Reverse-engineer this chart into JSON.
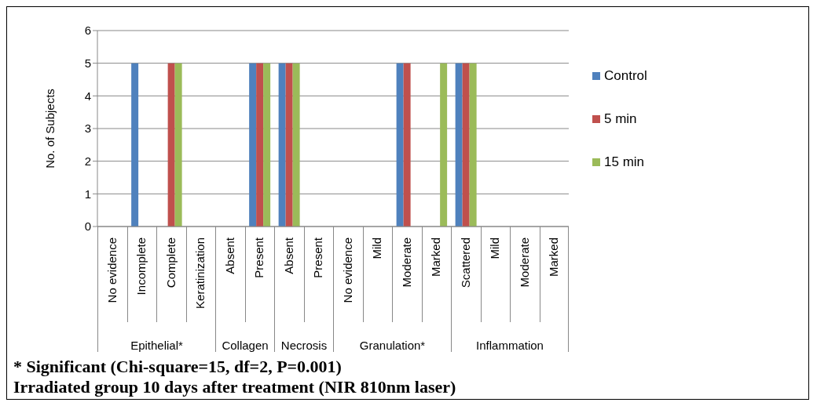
{
  "chart_data": {
    "type": "bar",
    "ylabel": "No. of Subjects",
    "categories": [
      "No evidence",
      "Incomplete",
      "Complete",
      "Keratinization",
      "Absent",
      "Present",
      "Absent",
      "Present",
      "No evidence",
      "Mild",
      "Moderate",
      "Marked",
      "Scattered",
      "Mild",
      "Moderate",
      "Marked"
    ],
    "series": [
      {
        "name": "Control",
        "color": "#4f81bd",
        "values": [
          0,
          5,
          0,
          0,
          0,
          5,
          5,
          0,
          0,
          0,
          5,
          0,
          5,
          0,
          0,
          0
        ]
      },
      {
        "name": "5 min",
        "color": "#c0504d",
        "values": [
          0,
          0,
          5,
          0,
          0,
          5,
          5,
          0,
          0,
          0,
          5,
          0,
          5,
          0,
          0,
          0
        ]
      },
      {
        "name": "15 min",
        "color": "#9bbb59",
        "values": [
          0,
          0,
          5,
          0,
          0,
          5,
          5,
          0,
          0,
          0,
          0,
          5,
          5,
          0,
          0,
          0
        ]
      }
    ],
    "ylim": [
      0,
      6
    ],
    "yticks": [
      0,
      1,
      2,
      3,
      4,
      5,
      6
    ],
    "grid": "y",
    "legend": "right",
    "annotations": [
      "Epithelial*",
      "Collagen",
      "Necrosis",
      "Granulation*",
      "Inflammation",
      "* Significant (Chi-square=15, df=2, P=0.001)",
      "Irradiated group 10 days after treatment (NIR 810nm laser)"
    ]
  }
}
